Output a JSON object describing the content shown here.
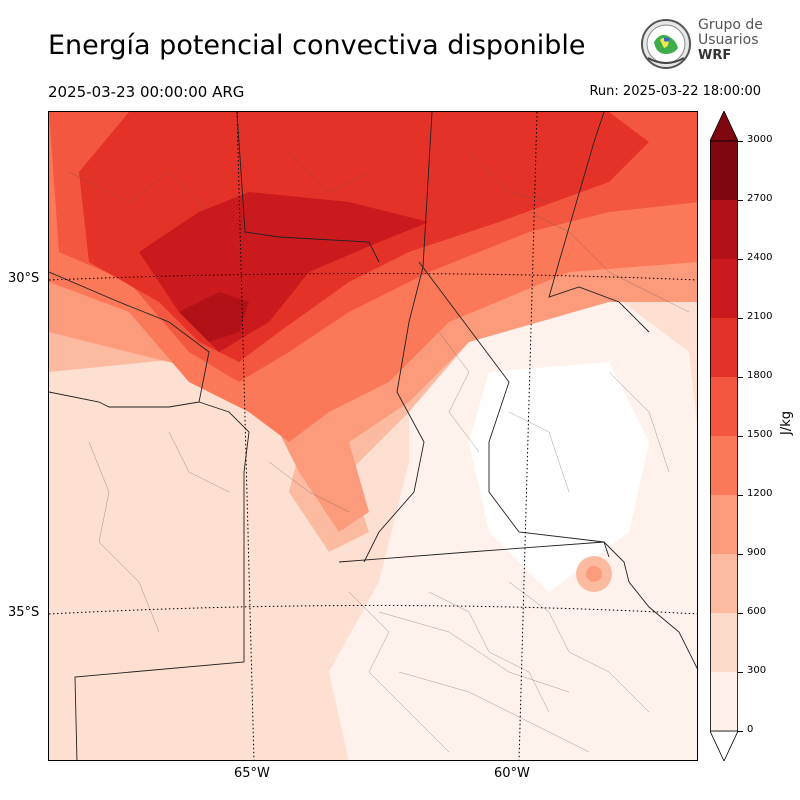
{
  "header": {
    "title": "Energía potencial convectiva disponible",
    "valid_time": "2025-03-23 00:00:00 ARG",
    "run_time": "Run: 2025-03-22 18:00:00"
  },
  "logo": {
    "line1": "Grupo de",
    "line2": "Usuarios",
    "line3": "WRF"
  },
  "map": {
    "variable": "CAPE",
    "latitude_labels": [
      "30°S",
      "35°S"
    ],
    "longitude_labels": [
      "65°W",
      "60°W"
    ],
    "gridline_style": "dotted"
  },
  "colorbar": {
    "unit": "J/kg",
    "ticks": [
      "0",
      "300",
      "600",
      "900",
      "1200",
      "1500",
      "1800",
      "2100",
      "2400",
      "2700",
      "3000"
    ],
    "colors": [
      "#fff0ea",
      "#fddbcb",
      "#fcbba1",
      "#fc9a7c",
      "#fb7858",
      "#f4573f",
      "#e53228",
      "#cb1a1d",
      "#b11117",
      "#7f0710"
    ],
    "extend": "both"
  }
}
